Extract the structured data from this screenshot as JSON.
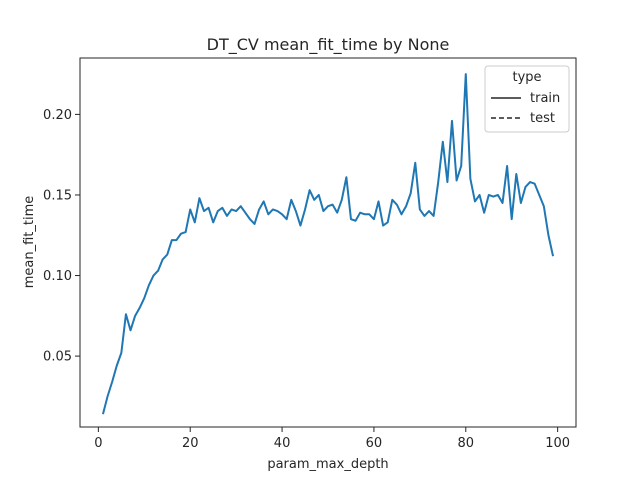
{
  "chart_data": {
    "type": "line",
    "title": "DT_CV mean_fit_time by None",
    "xlabel": "param_max_depth",
    "ylabel": "mean_fit_time",
    "xlim": [
      -4,
      104
    ],
    "ylim": [
      0.006,
      0.235
    ],
    "xticks": [
      0,
      20,
      40,
      60,
      80,
      100
    ],
    "yticks": [
      0.05,
      0.1,
      0.15,
      0.2
    ],
    "ytick_labels": [
      "0.05",
      "0.10",
      "0.15",
      "0.20"
    ],
    "grid": false,
    "legend": {
      "title": "type",
      "position": "top-right",
      "entries": [
        {
          "label": "train",
          "style": "solid"
        },
        {
          "label": "test",
          "style": "dashed"
        }
      ]
    },
    "color": "#1f77b4",
    "series": [
      {
        "name": "train",
        "x": [
          1,
          2,
          3,
          4,
          5,
          6,
          7,
          8,
          9,
          10,
          11,
          12,
          13,
          14,
          15,
          16,
          17,
          18,
          19,
          20,
          21,
          22,
          23,
          24,
          25,
          26,
          27,
          28,
          29,
          30,
          31,
          32,
          33,
          34,
          35,
          36,
          37,
          38,
          39,
          40,
          41,
          42,
          43,
          44,
          45,
          46,
          47,
          48,
          49,
          50,
          51,
          52,
          53,
          54,
          55,
          56,
          57,
          58,
          59,
          60,
          61,
          62,
          63,
          64,
          65,
          66,
          67,
          68,
          69,
          70,
          71,
          72,
          73,
          74,
          75,
          76,
          77,
          78,
          79,
          80,
          81,
          82,
          83,
          84,
          85,
          86,
          87,
          88,
          89,
          90,
          91,
          92,
          93,
          94,
          95,
          96,
          97,
          98,
          99
        ],
        "y": [
          0.014,
          0.025,
          0.034,
          0.044,
          0.052,
          0.076,
          0.066,
          0.075,
          0.08,
          0.086,
          0.094,
          0.1,
          0.103,
          0.11,
          0.113,
          0.122,
          0.122,
          0.126,
          0.127,
          0.141,
          0.133,
          0.148,
          0.14,
          0.142,
          0.133,
          0.14,
          0.142,
          0.137,
          0.141,
          0.14,
          0.143,
          0.139,
          0.135,
          0.132,
          0.141,
          0.146,
          0.138,
          0.141,
          0.14,
          0.138,
          0.135,
          0.147,
          0.14,
          0.131,
          0.141,
          0.153,
          0.147,
          0.15,
          0.14,
          0.143,
          0.144,
          0.139,
          0.147,
          0.161,
          0.135,
          0.134,
          0.139,
          0.138,
          0.138,
          0.135,
          0.146,
          0.131,
          0.133,
          0.147,
          0.144,
          0.138,
          0.143,
          0.151,
          0.17,
          0.141,
          0.137,
          0.14,
          0.137,
          0.158,
          0.183,
          0.158,
          0.196,
          0.159,
          0.168,
          0.225,
          0.16,
          0.146,
          0.15,
          0.139,
          0.15,
          0.149,
          0.15,
          0.145,
          0.168,
          0.135,
          0.163,
          0.145,
          0.155,
          0.158,
          0.157,
          0.15,
          0.143,
          0.125,
          0.112
        ]
      }
    ]
  }
}
